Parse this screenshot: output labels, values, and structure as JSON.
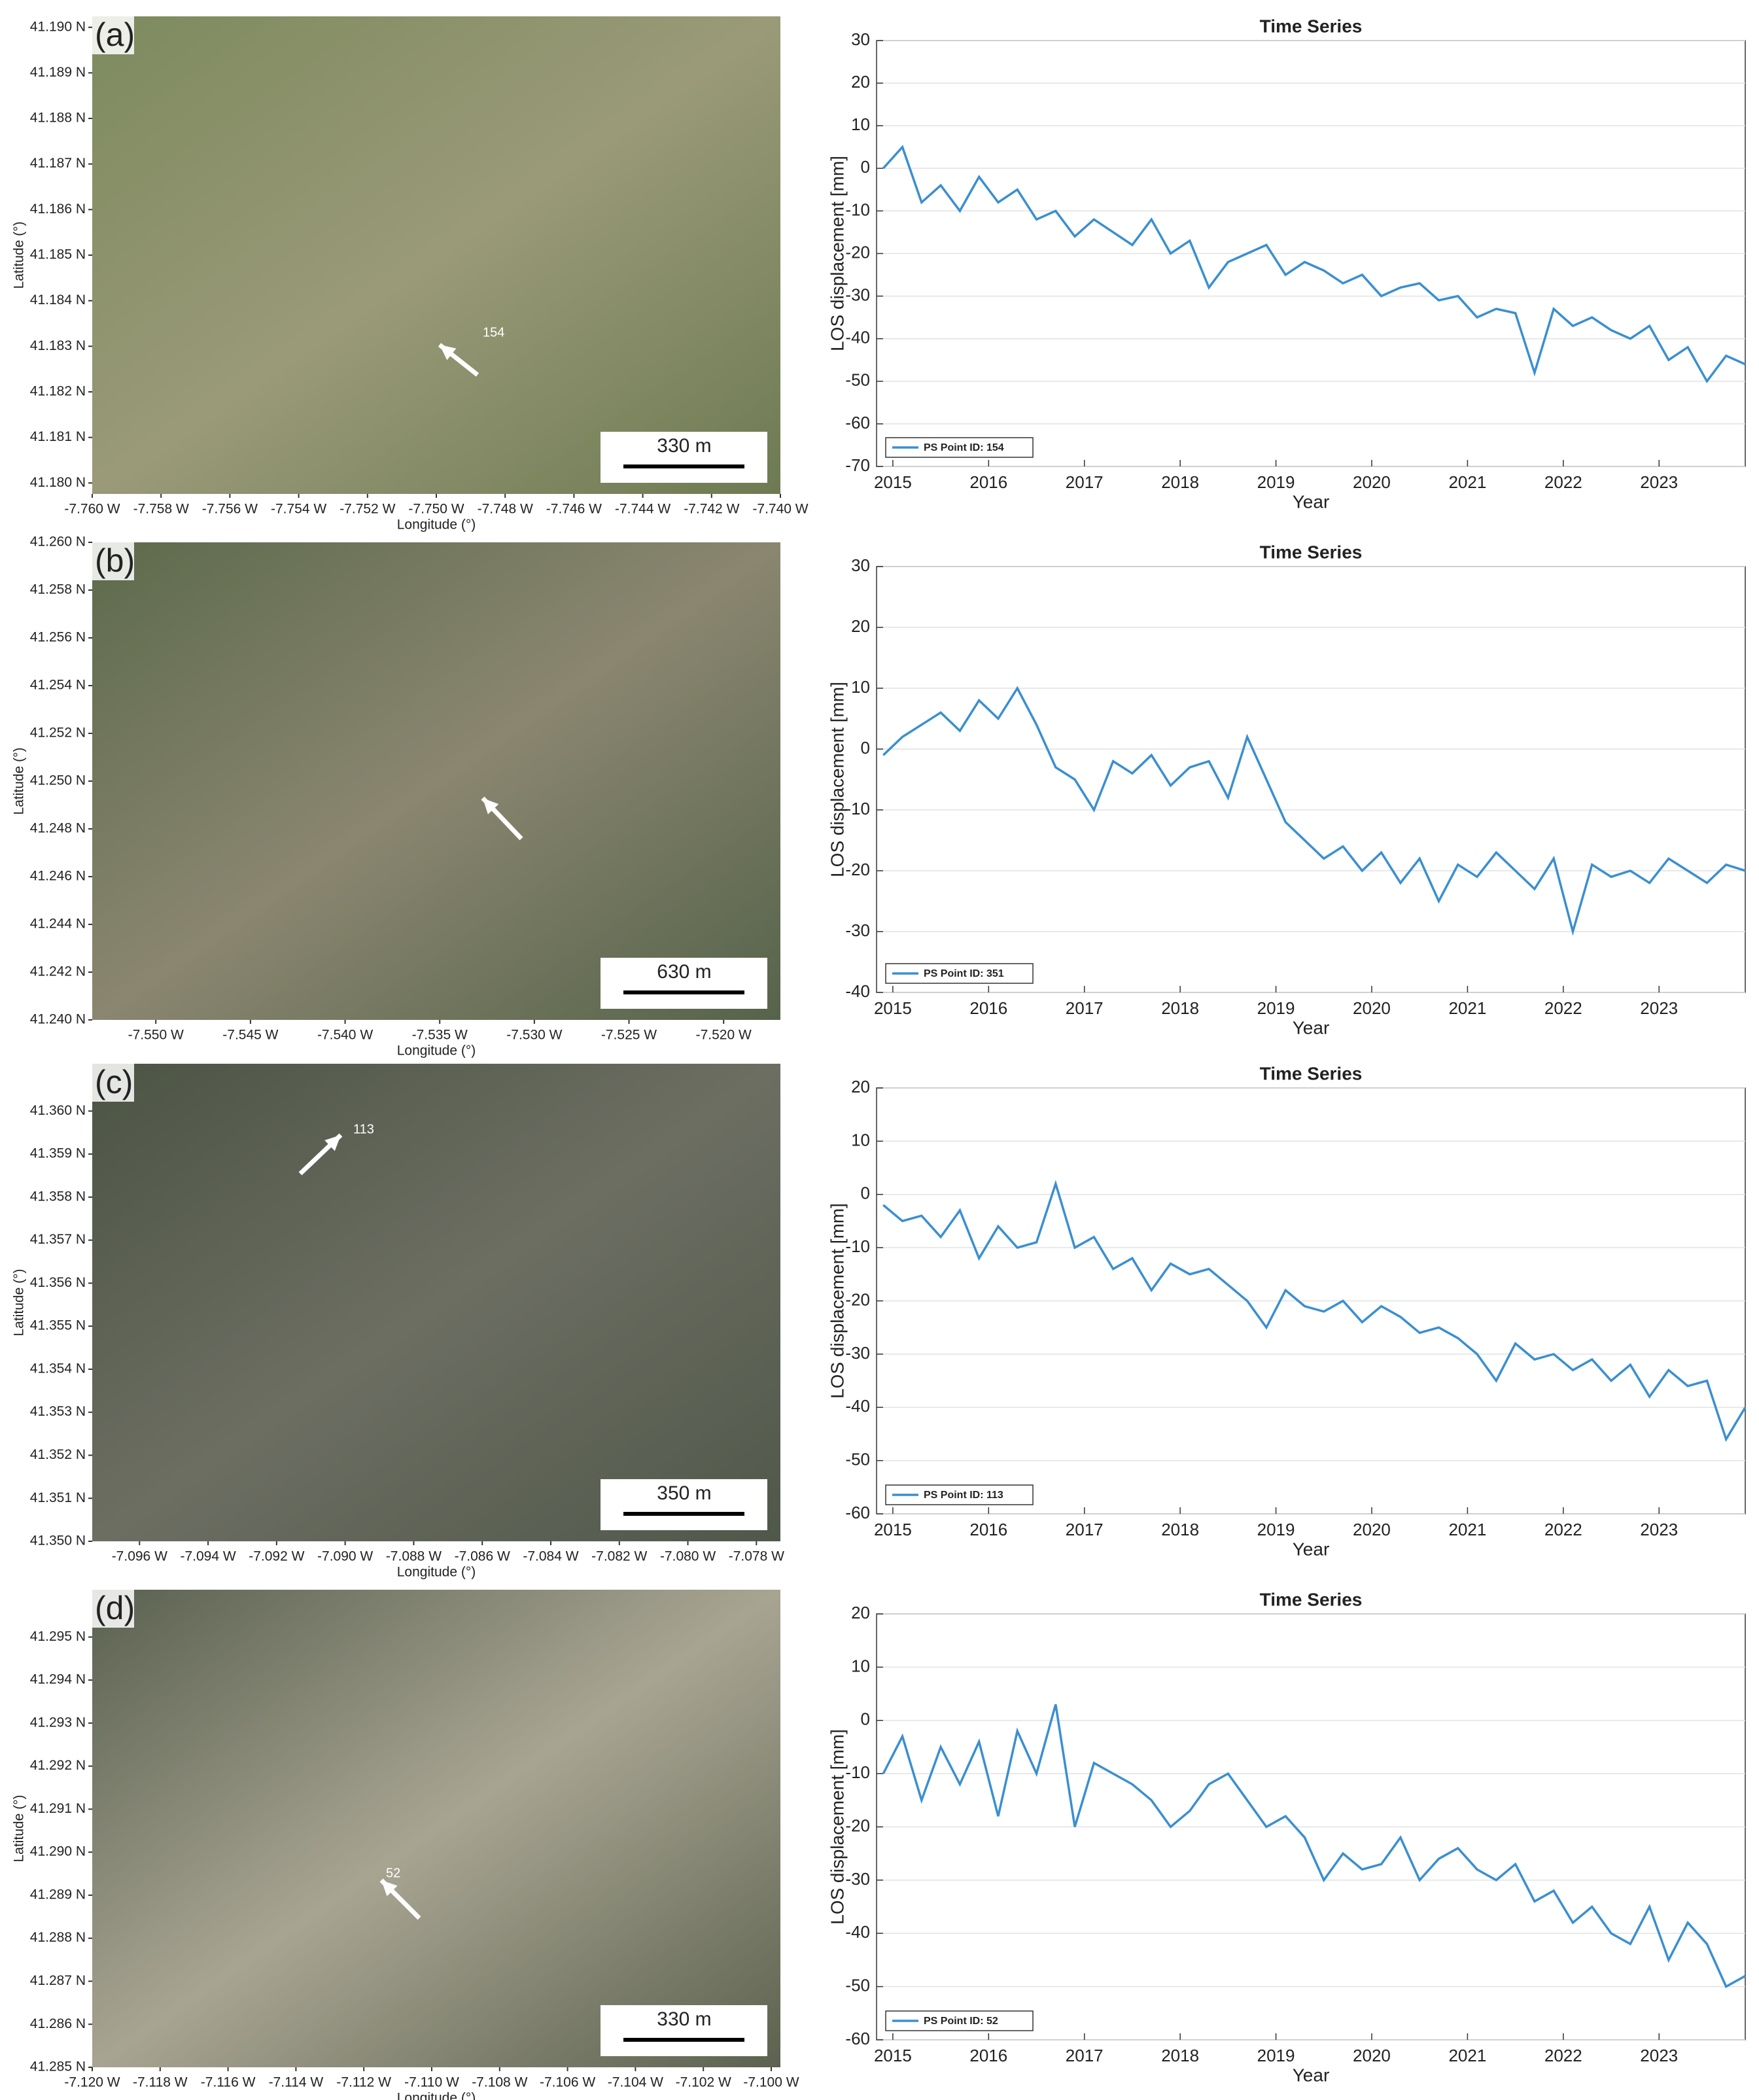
{
  "chart_data": [
    {
      "type": "map",
      "panel": "(a)",
      "xlabel": "Longitude (°)",
      "ylabel": "Latitude (°)",
      "scale_label": "330 m",
      "point_label": "154",
      "xlim": [
        -7.76,
        -7.74
      ],
      "ylim": [
        41.17976,
        41.19024
      ],
      "xticks": [
        {
          "value": -7.76,
          "label": "-7.760 W"
        },
        {
          "value": -7.758,
          "label": "-7.758 W"
        },
        {
          "value": -7.756,
          "label": "-7.756 W"
        },
        {
          "value": -7.754,
          "label": "-7.754 W"
        },
        {
          "value": -7.752,
          "label": "-7.752 W"
        },
        {
          "value": -7.75,
          "label": "-7.750 W"
        },
        {
          "value": -7.748,
          "label": "-7.748 W"
        },
        {
          "value": -7.746,
          "label": "-7.746 W"
        },
        {
          "value": -7.744,
          "label": "-7.744 W"
        },
        {
          "value": -7.742,
          "label": "-7.742 W"
        },
        {
          "value": -7.74,
          "label": "-7.740 W"
        }
      ],
      "yticks": [
        {
          "value": 41.18,
          "label": "41.180 N"
        },
        {
          "value": 41.181,
          "label": "41.181 N"
        },
        {
          "value": 41.182,
          "label": "41.182 N"
        },
        {
          "value": 41.183,
          "label": "41.183 N"
        },
        {
          "value": 41.184,
          "label": "41.184 N"
        },
        {
          "value": 41.185,
          "label": "41.185 N"
        },
        {
          "value": 41.186,
          "label": "41.186 N"
        },
        {
          "value": 41.187,
          "label": "41.187 N"
        },
        {
          "value": 41.188,
          "label": "41.188 N"
        },
        {
          "value": 41.189,
          "label": "41.189 N"
        },
        {
          "value": 41.19,
          "label": "41.190 N"
        }
      ]
    },
    {
      "type": "line",
      "title": "Time Series",
      "xlabel": "Year",
      "ylabel": "LOS displacement [mm]",
      "grid": true,
      "legend": "lower left",
      "xlim": [
        2014.83,
        2023.9
      ],
      "xticks": [
        2015,
        2016,
        2017,
        2018,
        2019,
        2020,
        2021,
        2022,
        2023
      ],
      "ylim": [
        -70,
        30
      ],
      "yticks": [
        -70,
        -60,
        -50,
        -40,
        -30,
        -20,
        -10,
        0,
        10,
        20,
        30
      ],
      "x": [
        2014.9,
        2015.1,
        2015.3,
        2015.5,
        2015.7,
        2015.9,
        2016.1,
        2016.3,
        2016.5,
        2016.7,
        2016.9,
        2017.1,
        2017.3,
        2017.5,
        2017.7,
        2017.9,
        2018.1,
        2018.3,
        2018.5,
        2018.7,
        2018.9,
        2019.1,
        2019.3,
        2019.5,
        2019.7,
        2019.9,
        2020.1,
        2020.3,
        2020.5,
        2020.7,
        2020.9,
        2021.1,
        2021.3,
        2021.5,
        2021.7,
        2021.9,
        2022.1,
        2022.3,
        2022.5,
        2022.7,
        2022.9,
        2023.1,
        2023.3,
        2023.5,
        2023.7,
        2023.9
      ],
      "series": [
        {
          "name": "PS Point ID: 154",
          "color": "#3a8fd0",
          "values": [
            0,
            5,
            -8,
            -4,
            -10,
            -2,
            -8,
            -5,
            -12,
            -10,
            -16,
            -12,
            -15,
            -18,
            -12,
            -20,
            -17,
            -28,
            -22,
            -20,
            -18,
            -25,
            -22,
            -24,
            -27,
            -25,
            -30,
            -28,
            -27,
            -31,
            -30,
            -35,
            -33,
            -34,
            -48,
            -33,
            -37,
            -35,
            -38,
            -40,
            -37,
            -45,
            -42,
            -50,
            -44,
            -46
          ]
        }
      ]
    },
    {
      "type": "map",
      "panel": "(b)",
      "xlabel": "Longitude (°)",
      "ylabel": "Latitude (°)",
      "scale_label": "630 m",
      "xlim": [
        -7.55336,
        -7.517
      ],
      "ylim": [
        41.24,
        41.26
      ],
      "xticks": [
        {
          "value": -7.55,
          "label": "-7.550 W"
        },
        {
          "value": -7.545,
          "label": "-7.545 W"
        },
        {
          "value": -7.54,
          "label": "-7.540 W"
        },
        {
          "value": -7.535,
          "label": "-7.535 W"
        },
        {
          "value": -7.53,
          "label": "-7.530 W"
        },
        {
          "value": -7.525,
          "label": "-7.525 W"
        },
        {
          "value": -7.52,
          "label": "-7.520 W"
        }
      ],
      "yticks": [
        {
          "value": 41.24,
          "label": "41.240 N"
        },
        {
          "value": 41.242,
          "label": "41.242 N"
        },
        {
          "value": 41.244,
          "label": "41.244 N"
        },
        {
          "value": 41.246,
          "label": "41.246 N"
        },
        {
          "value": 41.248,
          "label": "41.248 N"
        },
        {
          "value": 41.25,
          "label": "41.250 N"
        },
        {
          "value": 41.252,
          "label": "41.252 N"
        },
        {
          "value": 41.254,
          "label": "41.254 N"
        },
        {
          "value": 41.256,
          "label": "41.256 N"
        },
        {
          "value": 41.258,
          "label": "41.258 N"
        },
        {
          "value": 41.26,
          "label": "41.260 N"
        }
      ]
    },
    {
      "type": "line",
      "title": "Time Series",
      "xlabel": "Year",
      "ylabel": "LOS displacement [mm]",
      "grid": true,
      "legend": "lower left",
      "xlim": [
        2014.83,
        2023.9
      ],
      "xticks": [
        2015,
        2016,
        2017,
        2018,
        2019,
        2020,
        2021,
        2022,
        2023
      ],
      "ylim": [
        -40,
        30
      ],
      "yticks": [
        -40,
        -30,
        -20,
        -10,
        0,
        10,
        20,
        30
      ],
      "x": [
        2014.9,
        2015.1,
        2015.3,
        2015.5,
        2015.7,
        2015.9,
        2016.1,
        2016.3,
        2016.5,
        2016.7,
        2016.9,
        2017.1,
        2017.3,
        2017.5,
        2017.7,
        2017.9,
        2018.1,
        2018.3,
        2018.5,
        2018.7,
        2018.9,
        2019.1,
        2019.3,
        2019.5,
        2019.7,
        2019.9,
        2020.1,
        2020.3,
        2020.5,
        2020.7,
        2020.9,
        2021.1,
        2021.3,
        2021.5,
        2021.7,
        2021.9,
        2022.1,
        2022.3,
        2022.5,
        2022.7,
        2022.9,
        2023.1,
        2023.3,
        2023.5,
        2023.7,
        2023.9
      ],
      "series": [
        {
          "name": "PS Point ID: 351",
          "color": "#3a8fd0",
          "values": [
            -1,
            2,
            4,
            6,
            3,
            8,
            5,
            10,
            4,
            -3,
            -5,
            -10,
            -2,
            -4,
            -1,
            -6,
            -3,
            -2,
            -8,
            2,
            -5,
            -12,
            -15,
            -18,
            -16,
            -20,
            -17,
            -22,
            -18,
            -25,
            -19,
            -21,
            -17,
            -20,
            -23,
            -18,
            -30,
            -19,
            -21,
            -20,
            -22,
            -18,
            -20,
            -22,
            -19,
            -20
          ]
        }
      ]
    },
    {
      "type": "map",
      "panel": "(c)",
      "xlabel": "Longitude (°)",
      "ylabel": "Latitude (°)",
      "scale_label": "350 m",
      "point_label": "113",
      "xlim": [
        -7.09738,
        -7.0773
      ],
      "ylim": [
        41.35,
        41.3611
      ],
      "xticks": [
        {
          "value": -7.096,
          "label": "-7.096 W"
        },
        {
          "value": -7.094,
          "label": "-7.094 W"
        },
        {
          "value": -7.092,
          "label": "-7.092 W"
        },
        {
          "value": -7.09,
          "label": "-7.090 W"
        },
        {
          "value": -7.088,
          "label": "-7.088 W"
        },
        {
          "value": -7.086,
          "label": "-7.086 W"
        },
        {
          "value": -7.084,
          "label": "-7.084 W"
        },
        {
          "value": -7.082,
          "label": "-7.082 W"
        },
        {
          "value": -7.08,
          "label": "-7.080 W"
        },
        {
          "value": -7.078,
          "label": "-7.078 W"
        }
      ],
      "yticks": [
        {
          "value": 41.35,
          "label": "41.350 N"
        },
        {
          "value": 41.351,
          "label": "41.351 N"
        },
        {
          "value": 41.352,
          "label": "41.352 N"
        },
        {
          "value": 41.353,
          "label": "41.353 N"
        },
        {
          "value": 41.354,
          "label": "41.354 N"
        },
        {
          "value": 41.355,
          "label": "41.355 N"
        },
        {
          "value": 41.356,
          "label": "41.356 N"
        },
        {
          "value": 41.357,
          "label": "41.357 N"
        },
        {
          "value": 41.358,
          "label": "41.358 N"
        },
        {
          "value": 41.359,
          "label": "41.359 N"
        },
        {
          "value": 41.36,
          "label": "41.360 N"
        }
      ]
    },
    {
      "type": "line",
      "title": "Time Series",
      "xlabel": "Year",
      "ylabel": "LOS displacement [mm]",
      "grid": true,
      "legend": "lower left",
      "xlim": [
        2014.83,
        2023.9
      ],
      "xticks": [
        2015,
        2016,
        2017,
        2018,
        2019,
        2020,
        2021,
        2022,
        2023
      ],
      "ylim": [
        -60,
        20
      ],
      "yticks": [
        -60,
        -50,
        -40,
        -30,
        -20,
        -10,
        0,
        10,
        20
      ],
      "x": [
        2014.9,
        2015.1,
        2015.3,
        2015.5,
        2015.7,
        2015.9,
        2016.1,
        2016.3,
        2016.5,
        2016.7,
        2016.9,
        2017.1,
        2017.3,
        2017.5,
        2017.7,
        2017.9,
        2018.1,
        2018.3,
        2018.5,
        2018.7,
        2018.9,
        2019.1,
        2019.3,
        2019.5,
        2019.7,
        2019.9,
        2020.1,
        2020.3,
        2020.5,
        2020.7,
        2020.9,
        2021.1,
        2021.3,
        2021.5,
        2021.7,
        2021.9,
        2022.1,
        2022.3,
        2022.5,
        2022.7,
        2022.9,
        2023.1,
        2023.3,
        2023.5,
        2023.7,
        2023.9
      ],
      "series": [
        {
          "name": "PS Point ID: 113",
          "color": "#3a8fd0",
          "values": [
            -2,
            -5,
            -4,
            -8,
            -3,
            -12,
            -6,
            -10,
            -9,
            2,
            -10,
            -8,
            -14,
            -12,
            -18,
            -13,
            -15,
            -14,
            -17,
            -20,
            -25,
            -18,
            -21,
            -22,
            -20,
            -24,
            -21,
            -23,
            -26,
            -25,
            -27,
            -30,
            -35,
            -28,
            -31,
            -30,
            -33,
            -31,
            -35,
            -32,
            -38,
            -33,
            -36,
            -35,
            -46,
            -40
          ]
        }
      ]
    },
    {
      "type": "map",
      "panel": "(d)",
      "xlabel": "Longitude (°)",
      "ylabel": "Latitude (°)",
      "scale_label": "330 m",
      "point_label": "52",
      "xlim": [
        -7.12,
        -7.09973
      ],
      "ylim": [
        41.285,
        41.2961
      ],
      "xticks": [
        {
          "value": -7.12,
          "label": "-7.120 W"
        },
        {
          "value": -7.118,
          "label": "-7.118 W"
        },
        {
          "value": -7.116,
          "label": "-7.116 W"
        },
        {
          "value": -7.114,
          "label": "-7.114 W"
        },
        {
          "value": -7.112,
          "label": "-7.112 W"
        },
        {
          "value": -7.11,
          "label": "-7.110 W"
        },
        {
          "value": -7.108,
          "label": "-7.108 W"
        },
        {
          "value": -7.106,
          "label": "-7.106 W"
        },
        {
          "value": -7.104,
          "label": "-7.104 W"
        },
        {
          "value": -7.102,
          "label": "-7.102 W"
        },
        {
          "value": -7.1,
          "label": "-7.100 W"
        }
      ],
      "yticks": [
        {
          "value": 41.285,
          "label": "41.285 N"
        },
        {
          "value": 41.286,
          "label": "41.286 N"
        },
        {
          "value": 41.287,
          "label": "41.287 N"
        },
        {
          "value": 41.288,
          "label": "41.288 N"
        },
        {
          "value": 41.289,
          "label": "41.289 N"
        },
        {
          "value": 41.29,
          "label": "41.290 N"
        },
        {
          "value": 41.291,
          "label": "41.291 N"
        },
        {
          "value": 41.292,
          "label": "41.292 N"
        },
        {
          "value": 41.293,
          "label": "41.293 N"
        },
        {
          "value": 41.294,
          "label": "41.294 N"
        },
        {
          "value": 41.295,
          "label": "41.295 N"
        }
      ]
    },
    {
      "type": "line",
      "title": "Time Series",
      "xlabel": "Year",
      "ylabel": "LOS displacement [mm]",
      "grid": true,
      "legend": "lower left",
      "xlim": [
        2014.83,
        2023.9
      ],
      "xticks": [
        2015,
        2016,
        2017,
        2018,
        2019,
        2020,
        2021,
        2022,
        2023
      ],
      "ylim": [
        -60,
        20
      ],
      "yticks": [
        -60,
        -50,
        -40,
        -30,
        -20,
        -10,
        0,
        10,
        20
      ],
      "x": [
        2014.9,
        2015.1,
        2015.3,
        2015.5,
        2015.7,
        2015.9,
        2016.1,
        2016.3,
        2016.5,
        2016.7,
        2016.9,
        2017.1,
        2017.3,
        2017.5,
        2017.7,
        2017.9,
        2018.1,
        2018.3,
        2018.5,
        2018.7,
        2018.9,
        2019.1,
        2019.3,
        2019.5,
        2019.7,
        2019.9,
        2020.1,
        2020.3,
        2020.5,
        2020.7,
        2020.9,
        2021.1,
        2021.3,
        2021.5,
        2021.7,
        2021.9,
        2022.1,
        2022.3,
        2022.5,
        2022.7,
        2022.9,
        2023.1,
        2023.3,
        2023.5,
        2023.7,
        2023.9
      ],
      "series": [
        {
          "name": "PS Point ID: 52",
          "color": "#3a8fd0",
          "values": [
            -10,
            -3,
            -15,
            -5,
            -12,
            -4,
            -18,
            -2,
            -10,
            3,
            -20,
            -8,
            -10,
            -12,
            -15,
            -20,
            -17,
            -12,
            -10,
            -15,
            -20,
            -18,
            -22,
            -30,
            -25,
            -28,
            -27,
            -22,
            -30,
            -26,
            -24,
            -28,
            -30,
            -27,
            -34,
            -32,
            -38,
            -35,
            -40,
            -42,
            -35,
            -45,
            -38,
            -42,
            -50,
            -48
          ]
        }
      ]
    }
  ]
}
